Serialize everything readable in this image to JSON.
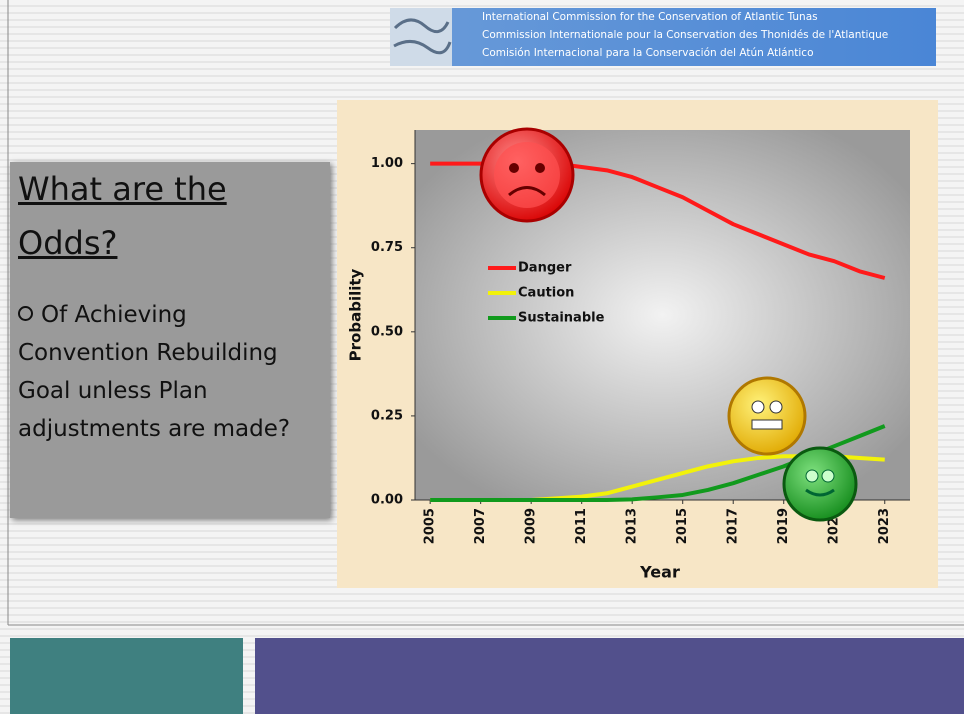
{
  "header": {
    "lines": [
      "International Commission for the Conservation of Atlantic Tunas",
      "Commission Internationale pour la Conservation des Thonidés de l'Atlantique",
      "Comisión Internacional para la Conservación del Atún Atlántico"
    ]
  },
  "sidebar": {
    "title": "What are the Odds?",
    "bullet": "Of Achieving Convention Rebuilding Goal unless Plan adjustments are made?"
  },
  "chart_data": {
    "type": "line",
    "x_label": "Year",
    "y_label": "Probability",
    "x": [
      2005,
      2006,
      2007,
      2008,
      2009,
      2010,
      2011,
      2012,
      2013,
      2014,
      2015,
      2016,
      2017,
      2018,
      2019,
      2020,
      2021,
      2022,
      2023
    ],
    "series": [
      {
        "name": "Danger",
        "color": "#ff1a1a",
        "values": [
          1.0,
          1.0,
          1.0,
          1.0,
          1.0,
          1.0,
          0.99,
          0.98,
          0.96,
          0.93,
          0.9,
          0.86,
          0.82,
          0.79,
          0.76,
          0.73,
          0.71,
          0.68,
          0.66
        ]
      },
      {
        "name": "Caution",
        "color": "#f2f20a",
        "values": [
          0,
          0,
          0,
          0,
          0,
          0.005,
          0.01,
          0.02,
          0.04,
          0.06,
          0.08,
          0.1,
          0.115,
          0.125,
          0.13,
          0.13,
          0.13,
          0.125,
          0.12
        ]
      },
      {
        "name": "Sustainable",
        "color": "#119a1d",
        "values": [
          0,
          0,
          0,
          0,
          0,
          0,
          0,
          0,
          0.002,
          0.008,
          0.015,
          0.03,
          0.05,
          0.075,
          0.1,
          0.13,
          0.16,
          0.19,
          0.22
        ]
      }
    ],
    "xlim": [
      2004.4,
      2024
    ],
    "xticks": [
      2005,
      2007,
      2009,
      2011,
      2013,
      2015,
      2017,
      2019,
      2021,
      2023
    ],
    "ylim": [
      0,
      1.1
    ],
    "yticks": [
      {
        "value": 0,
        "label": "0.00"
      },
      {
        "value": 0.25,
        "label": "0.25"
      },
      {
        "value": 0.5,
        "label": "0.50"
      },
      {
        "value": 0.75,
        "label": "0.75"
      },
      {
        "value": 1,
        "label": "1.00"
      }
    ],
    "legend": "upper left"
  }
}
